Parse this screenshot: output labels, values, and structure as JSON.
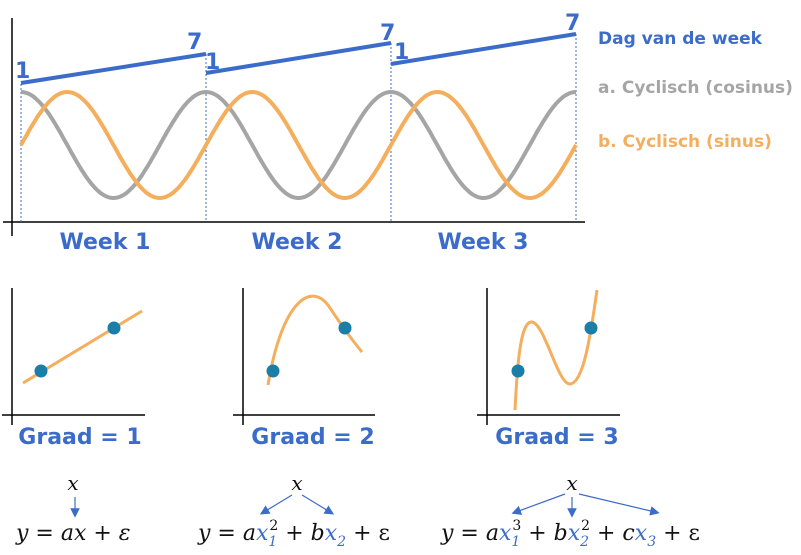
{
  "top_chart": {
    "day_numbers": [
      "1",
      "7",
      "1",
      "7",
      "1",
      "7"
    ],
    "week_labels": [
      "Week 1",
      "Week 2",
      "Week 3"
    ],
    "legend": {
      "day_of_week": "Dag van de week",
      "cosine": "a. Cyclisch (cosinus)",
      "sine": "b. Cyclisch (sinus)"
    },
    "colors": {
      "blue": "#3c6cc9",
      "grey": "#a5a5a5",
      "orange": "#f4ae5c",
      "point": "#1a7ea8"
    }
  },
  "degree_plots": [
    {
      "label": "Graad = 1"
    },
    {
      "label": "Graad = 2"
    },
    {
      "label": "Graad = 3"
    }
  ],
  "equations": {
    "input_var": "x",
    "eq1": {
      "lhs": "y = ",
      "t1": "ax",
      "t2": " + ε"
    },
    "eq2": {
      "lhs": "y = a",
      "x1": "x",
      "s1": "1",
      "p1": "2",
      "mid": " + b",
      "x2": "x",
      "s2": "2",
      "tail": " + ε"
    },
    "eq3": {
      "lhs": "y = a",
      "x1": "x",
      "s1": "1",
      "p1": "3",
      "mid1": " + b",
      "x2": "x",
      "s2": "2",
      "p2": "2",
      "mid2": " + c",
      "x3": "x",
      "s3": "3",
      "tail": " + ε"
    }
  }
}
